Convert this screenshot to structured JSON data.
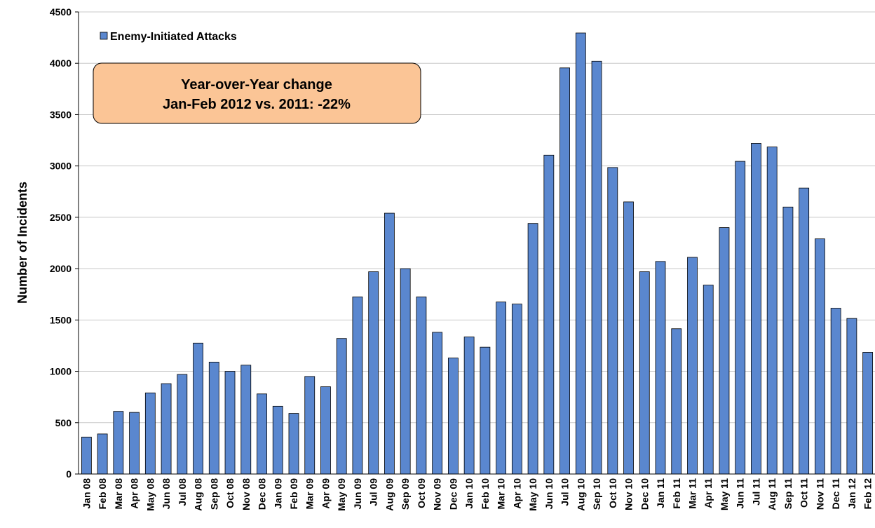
{
  "chart_data": {
    "type": "bar",
    "title": "",
    "xlabel": "",
    "ylabel": "Number of Incidents",
    "ylim": [
      0,
      4500
    ],
    "yticks": [
      0,
      500,
      1000,
      1500,
      2000,
      2500,
      3000,
      3500,
      4000,
      4500
    ],
    "grid": true,
    "legend_position": "top-left",
    "categories": [
      "Jan 08",
      "Feb 08",
      "Mar 08",
      "Apr 08",
      "May 08",
      "Jun 08",
      "Jul 08",
      "Aug 08",
      "Sep 08",
      "Oct 08",
      "Nov 08",
      "Dec 08",
      "Jan 09",
      "Feb 09",
      "Mar 09",
      "Apr 09",
      "May 09",
      "Jun 09",
      "Jul 09",
      "Aug 09",
      "Sep 09",
      "Oct 09",
      "Nov 09",
      "Dec 09",
      "Jan 10",
      "Feb 10",
      "Mar 10",
      "Apr 10",
      "May 10",
      "Jun 10",
      "Jul 10",
      "Aug 10",
      "Sep 10",
      "Oct 10",
      "Nov 10",
      "Dec 10",
      "Jan 11",
      "Feb 11",
      "Mar 11",
      "Apr 11",
      "May 11",
      "Jun 11",
      "Jul 11",
      "Aug 11",
      "Sep 11",
      "Oct 11",
      "Nov 11",
      "Dec 11",
      "Jan 12",
      "Feb 12"
    ],
    "series": [
      {
        "name": "Enemy-Initiated Attacks",
        "color": "#5a87cf",
        "values": [
          360,
          390,
          610,
          600,
          790,
          880,
          970,
          1275,
          1090,
          1000,
          1060,
          780,
          660,
          590,
          950,
          850,
          1320,
          1725,
          1970,
          2540,
          2000,
          1725,
          1380,
          1130,
          1335,
          1235,
          1675,
          1655,
          2440,
          3105,
          3955,
          4295,
          4020,
          2985,
          2650,
          1970,
          2070,
          1415,
          2110,
          1840,
          2400,
          3045,
          3220,
          3185,
          2600,
          2785,
          2290,
          1615,
          1515,
          1185
        ]
      }
    ],
    "annotation": {
      "line1": "Year-over-Year change",
      "line2": "Jan-Feb 2012 vs. 2011:  -22%",
      "fill_color": "#fbc596"
    }
  }
}
